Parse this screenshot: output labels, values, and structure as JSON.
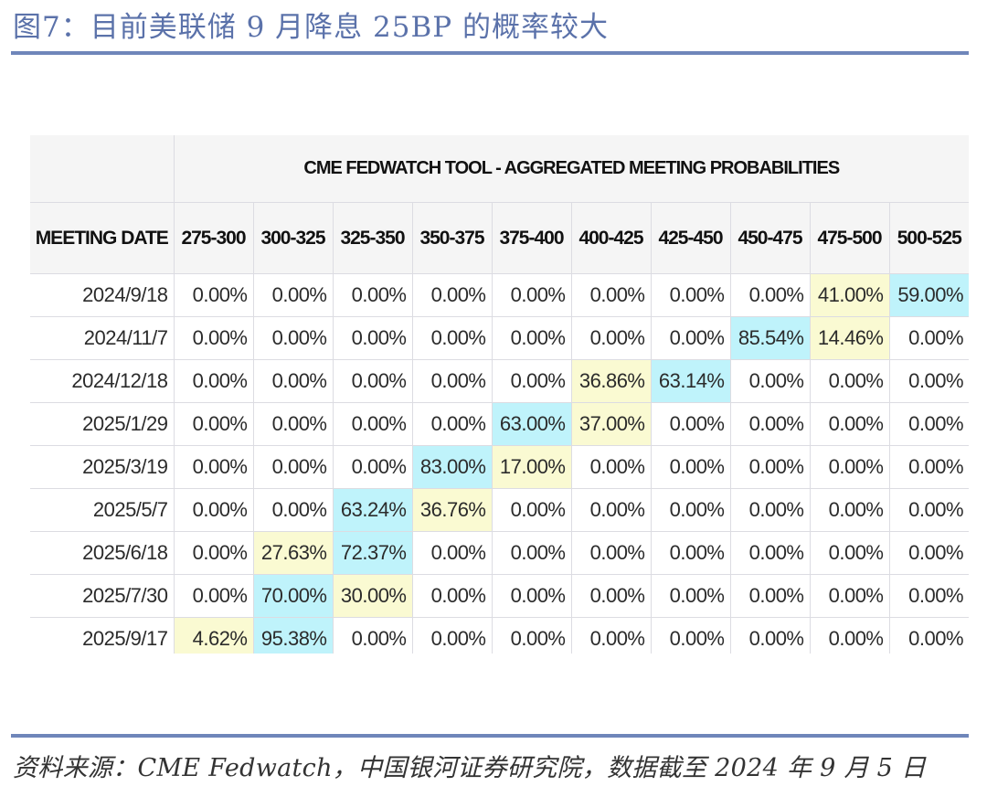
{
  "figure": {
    "title": "图7：目前美联储 9 月降息 25BP 的概率较大",
    "source": "资料来源：CME Fedwatch，中国银河证券研究院，数据截至 2024 年 9 月 5 日"
  },
  "table": {
    "title": "CME FEDWATCH TOOL - AGGREGATED MEETING PROBABILITIES",
    "date_header": "MEETING DATE",
    "columns": [
      "275-300",
      "300-325",
      "325-350",
      "350-375",
      "375-400",
      "400-425",
      "425-450",
      "450-475",
      "475-500",
      "500-525"
    ],
    "rows": [
      {
        "date": "2024/9/18",
        "values": [
          "0.00%",
          "0.00%",
          "0.00%",
          "0.00%",
          "0.00%",
          "0.00%",
          "0.00%",
          "0.00%",
          "41.00%",
          "59.00%"
        ],
        "highlight": [
          "",
          "",
          "",
          "",
          "",
          "",
          "",
          "",
          "yellow",
          "blue"
        ]
      },
      {
        "date": "2024/11/7",
        "values": [
          "0.00%",
          "0.00%",
          "0.00%",
          "0.00%",
          "0.00%",
          "0.00%",
          "0.00%",
          "85.54%",
          "14.46%",
          "0.00%"
        ],
        "highlight": [
          "",
          "",
          "",
          "",
          "",
          "",
          "",
          "blue",
          "yellow",
          ""
        ]
      },
      {
        "date": "2024/12/18",
        "values": [
          "0.00%",
          "0.00%",
          "0.00%",
          "0.00%",
          "0.00%",
          "36.86%",
          "63.14%",
          "0.00%",
          "0.00%",
          "0.00%"
        ],
        "highlight": [
          "",
          "",
          "",
          "",
          "",
          "yellow",
          "blue",
          "",
          "",
          ""
        ]
      },
      {
        "date": "2025/1/29",
        "values": [
          "0.00%",
          "0.00%",
          "0.00%",
          "0.00%",
          "63.00%",
          "37.00%",
          "0.00%",
          "0.00%",
          "0.00%",
          "0.00%"
        ],
        "highlight": [
          "",
          "",
          "",
          "",
          "blue",
          "yellow",
          "",
          "",
          "",
          ""
        ]
      },
      {
        "date": "2025/3/19",
        "values": [
          "0.00%",
          "0.00%",
          "0.00%",
          "83.00%",
          "17.00%",
          "0.00%",
          "0.00%",
          "0.00%",
          "0.00%",
          "0.00%"
        ],
        "highlight": [
          "",
          "",
          "",
          "blue",
          "yellow",
          "",
          "",
          "",
          "",
          ""
        ]
      },
      {
        "date": "2025/5/7",
        "values": [
          "0.00%",
          "0.00%",
          "63.24%",
          "36.76%",
          "0.00%",
          "0.00%",
          "0.00%",
          "0.00%",
          "0.00%",
          "0.00%"
        ],
        "highlight": [
          "",
          "",
          "blue",
          "yellow",
          "",
          "",
          "",
          "",
          "",
          ""
        ]
      },
      {
        "date": "2025/6/18",
        "values": [
          "0.00%",
          "27.63%",
          "72.37%",
          "0.00%",
          "0.00%",
          "0.00%",
          "0.00%",
          "0.00%",
          "0.00%",
          "0.00%"
        ],
        "highlight": [
          "",
          "yellow",
          "blue",
          "",
          "",
          "",
          "",
          "",
          "",
          ""
        ]
      },
      {
        "date": "2025/7/30",
        "values": [
          "0.00%",
          "70.00%",
          "30.00%",
          "0.00%",
          "0.00%",
          "0.00%",
          "0.00%",
          "0.00%",
          "0.00%",
          "0.00%"
        ],
        "highlight": [
          "",
          "blue",
          "yellow",
          "",
          "",
          "",
          "",
          "",
          "",
          ""
        ]
      },
      {
        "date": "2025/9/17",
        "values": [
          "4.62%",
          "95.38%",
          "0.00%",
          "0.00%",
          "0.00%",
          "0.00%",
          "0.00%",
          "0.00%",
          "0.00%",
          "0.00%"
        ],
        "highlight": [
          "yellow",
          "blue",
          "",
          "",
          "",
          "",
          "",
          "",
          "",
          ""
        ]
      }
    ]
  },
  "colors": {
    "title_text": "#5b72aa",
    "rule": "#6f86ba",
    "highlight_blue": "#bff3fb",
    "highlight_yellow": "#fafad2",
    "header_bg": "#f5f5f5",
    "grid": "#dcdce2"
  }
}
